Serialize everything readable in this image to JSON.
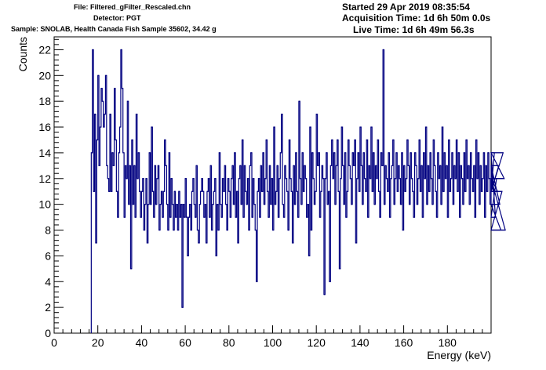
{
  "header": {
    "file": "File: Filtered_gFilter_Rescaled.chn",
    "detector": "Detector: PGT",
    "sample": "Sample: SNOLAB, Health Canada Fish Sample 35602, 34.42 g",
    "started": "Started 29 Apr 2019 08:35:54",
    "acquisition": "Acquisition Time: 1d 6h 50m 0.0s",
    "live": "Live Time: 1d 6h 49m 56.3s"
  },
  "colors": {
    "line": "#000080",
    "axis": "#000000",
    "background": "#ffffff"
  },
  "chart_data": {
    "type": "histogram",
    "xlabel": "Energy (keV)",
    "ylabel": "Counts",
    "xlim": [
      0,
      200
    ],
    "ylim": [
      0,
      23
    ],
    "x_ticks": [
      0,
      20,
      40,
      60,
      80,
      100,
      120,
      140,
      160,
      180
    ],
    "y_ticks": [
      0,
      2,
      4,
      6,
      8,
      10,
      12,
      14,
      16,
      18,
      20,
      22
    ],
    "grid": false,
    "bin_start": 17.0,
    "bin_width": 0.5,
    "values": [
      14,
      22,
      11,
      17,
      7,
      15,
      20,
      13,
      16,
      19,
      18,
      16,
      17,
      20,
      13,
      12,
      11,
      17,
      11,
      14,
      13,
      19,
      15,
      11,
      9,
      14,
      16,
      22,
      19,
      14,
      9,
      13,
      12,
      18,
      10,
      13,
      5,
      15,
      10,
      13,
      9,
      17,
      12,
      14,
      11,
      9,
      11,
      12,
      8,
      10,
      12,
      7,
      10,
      14,
      10,
      16,
      11,
      9,
      13,
      10,
      12,
      13,
      8,
      10,
      11,
      9,
      11,
      15,
      13,
      10,
      8,
      14,
      9,
      12,
      10,
      8,
      11,
      9,
      10,
      8,
      11,
      9,
      10,
      2,
      10,
      9,
      12,
      9,
      6,
      9,
      10,
      8,
      11,
      12,
      10,
      9,
      13,
      8,
      7,
      10,
      11,
      12,
      11,
      9,
      10,
      7,
      11,
      12,
      9,
      13,
      8,
      10,
      11,
      12,
      6,
      10,
      8,
      14,
      10,
      9,
      12,
      11,
      13,
      10,
      8,
      12,
      11,
      9,
      12,
      13,
      10,
      14,
      9,
      11,
      7,
      12,
      13,
      10,
      15,
      9,
      13,
      11,
      10,
      12,
      8,
      13,
      14,
      9,
      12,
      10,
      8,
      4,
      11,
      12,
      9,
      13,
      11,
      14,
      10,
      12,
      15,
      11,
      9,
      13,
      10,
      12,
      8,
      16,
      10,
      11,
      13,
      9,
      12,
      14,
      17,
      10,
      9,
      13,
      12,
      11,
      8,
      15,
      12,
      11,
      7,
      13,
      10,
      14,
      11,
      9,
      18,
      12,
      10,
      14,
      11,
      13,
      12,
      9,
      10,
      6,
      16,
      8,
      14,
      12,
      10,
      11,
      17,
      13,
      14,
      9,
      11,
      13,
      12,
      3,
      12,
      14,
      10,
      11,
      4,
      13,
      15,
      12,
      14,
      10,
      13,
      15,
      11,
      5,
      12,
      16,
      13,
      10,
      14,
      9,
      11,
      15,
      13,
      12,
      10,
      14,
      13,
      15,
      7,
      12,
      14,
      11,
      16,
      13,
      10,
      14,
      12,
      11,
      15,
      9,
      13,
      12,
      16,
      11,
      14,
      10,
      13,
      12,
      15,
      11,
      9,
      14,
      13,
      22,
      10,
      13,
      12,
      11,
      14,
      9,
      12,
      13,
      15,
      10,
      12,
      14,
      11,
      13,
      12,
      10,
      14,
      8,
      13,
      11,
      12,
      15,
      13,
      10,
      14,
      12,
      11,
      9,
      14,
      13,
      10,
      12,
      15,
      11,
      13,
      9,
      14,
      12,
      16,
      10,
      13,
      11,
      14,
      12,
      10,
      15,
      13,
      11,
      9,
      14,
      12,
      13,
      10,
      16,
      11,
      14,
      12,
      13,
      9,
      15,
      11,
      12,
      14,
      10,
      13,
      12,
      15,
      11,
      14,
      9,
      13,
      12,
      10,
      14,
      11,
      15,
      12,
      13,
      10,
      14,
      12,
      11,
      13,
      9,
      15,
      12,
      14,
      10,
      13,
      11,
      12,
      14,
      9,
      13,
      11,
      14,
      12,
      10,
      13,
      12,
      11,
      14,
      9,
      12,
      11,
      13,
      10,
      8,
      11,
      14,
      12,
      8
    ]
  }
}
